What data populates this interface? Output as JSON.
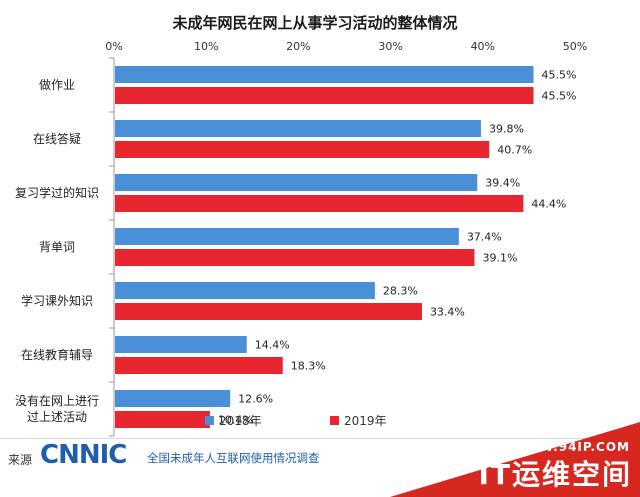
{
  "chart_data": {
    "type": "bar",
    "orientation": "horizontal",
    "title": "未成年网民在网上从事学习活动的整体情况",
    "categories": [
      "做作业",
      "在线答疑",
      "复习学过的知识",
      "背单词",
      "学习课外知识",
      "在线教育辅导",
      "没有在网上进行过上述活动"
    ],
    "category_lines": [
      [
        "做作业"
      ],
      [
        "在线答疑"
      ],
      [
        "复习学过的知识"
      ],
      [
        "背单词"
      ],
      [
        "学习课外知识"
      ],
      [
        "在线教育辅导"
      ],
      [
        "没有在网上进行",
        "过上述活动"
      ]
    ],
    "series": [
      {
        "name": "2018年",
        "color": "#4a90d9",
        "values": [
          45.5,
          39.8,
          39.4,
          37.4,
          28.3,
          14.4,
          12.6
        ],
        "labels": [
          "45.5%",
          "39.8%",
          "39.4%",
          "37.4%",
          "28.3%",
          "14.4%",
          "12.6%"
        ]
      },
      {
        "name": "2019年",
        "color": "#e8262f",
        "values": [
          45.5,
          40.7,
          44.4,
          39.1,
          33.4,
          18.3,
          10.4
        ],
        "labels": [
          "45.5%",
          "40.7%",
          "44.4%",
          "39.1%",
          "33.4%",
          "18.3%",
          "10.4%"
        ]
      }
    ],
    "xlim": [
      0,
      50
    ],
    "xticks": [
      "0%",
      "10%",
      "20%",
      "30%",
      "40%",
      "50%"
    ],
    "grid": false,
    "legend_position": "bottom"
  },
  "footer": {
    "source_label": "来源",
    "brand": "CNNIC",
    "source_text": "全国未成年人互联网使用情况调查"
  },
  "watermark": {
    "url": "WWW.94IP.COM",
    "name": "IT运维空间",
    "color": "#d6281f"
  }
}
